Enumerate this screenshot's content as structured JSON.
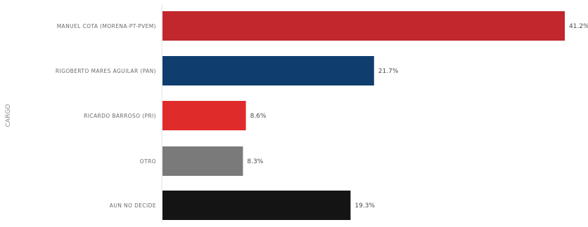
{
  "chart_data": {
    "type": "bar",
    "orientation": "horizontal",
    "title": "",
    "xlabel": "",
    "ylabel": "CARGO",
    "xlim": [
      0,
      42
    ],
    "grid": false,
    "legend": "none",
    "categories": [
      "MANUEL COTA (MORENA-PT-PVEM)",
      "RIGOBERTO MARES AGUILAR (PAN)",
      "RICARDO BARROSO (PRI)",
      "OTRO",
      "AUN NO DECIDE"
    ],
    "values": [
      41.2,
      21.7,
      8.6,
      8.3,
      19.3
    ],
    "value_labels": [
      "41.2%",
      "21.7%",
      "8.6%",
      "8.3%",
      "19.3%"
    ],
    "colors": [
      "#c1272d",
      "#0f3d6e",
      "#e02b2b",
      "#7a7a7a",
      "#141414"
    ]
  }
}
